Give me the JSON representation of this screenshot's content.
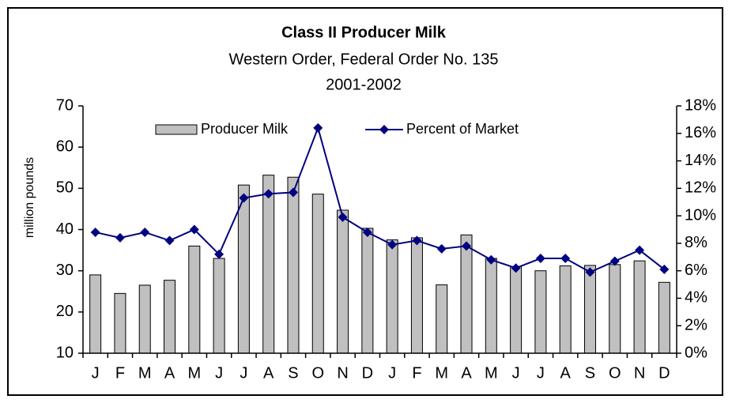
{
  "chart_data": {
    "type": "bar_line",
    "title": "Class II Producer Milk",
    "subtitle": [
      "Western Order, Federal Order No. 135",
      "2001-2002"
    ],
    "y_label": "million pounds",
    "categories": [
      "J",
      "F",
      "M",
      "A",
      "M",
      "J",
      "J",
      "A",
      "S",
      "O",
      "N",
      "D",
      "J",
      "F",
      "M",
      "A",
      "M",
      "J",
      "J",
      "A",
      "S",
      "O",
      "N",
      "D"
    ],
    "series": [
      {
        "name": "Producer Milk",
        "type": "bar",
        "color": "#c0c0c0",
        "axis": "y",
        "values": [
          29,
          24.5,
          26.5,
          27.7,
          36,
          33,
          50.8,
          53.2,
          52.7,
          48.6,
          44.7,
          40.3,
          37.5,
          38,
          26.6,
          38.7,
          33,
          31,
          30,
          31.2,
          31.3,
          31.5,
          32.4,
          27.2
        ]
      },
      {
        "name": "Percent of Market",
        "type": "line",
        "color": "#000080",
        "axis": "y2",
        "values": [
          8.8,
          8.4,
          8.8,
          8.2,
          9.0,
          7.2,
          11.3,
          11.6,
          11.7,
          16.4,
          9.9,
          8.8,
          7.9,
          8.2,
          7.6,
          7.8,
          6.8,
          6.2,
          6.9,
          6.9,
          5.9,
          6.7,
          7.5,
          6.1
        ]
      }
    ],
    "ylim": [
      10,
      70
    ],
    "yticks": [
      10,
      20,
      30,
      40,
      50,
      60,
      70
    ],
    "y2lim": [
      0,
      18
    ],
    "y2ticks": [
      {
        "value": 0,
        "label": "0%"
      },
      {
        "value": 2,
        "label": "2%"
      },
      {
        "value": 4,
        "label": "4%"
      },
      {
        "value": 6,
        "label": "6%"
      },
      {
        "value": 8,
        "label": "8%"
      },
      {
        "value": 10,
        "label": "10%"
      },
      {
        "value": 12,
        "label": "12%"
      },
      {
        "value": 14,
        "label": "14%"
      },
      {
        "value": 16,
        "label": "16%"
      },
      {
        "value": 18,
        "label": "18%"
      }
    ],
    "grid": false,
    "legend": "top"
  }
}
